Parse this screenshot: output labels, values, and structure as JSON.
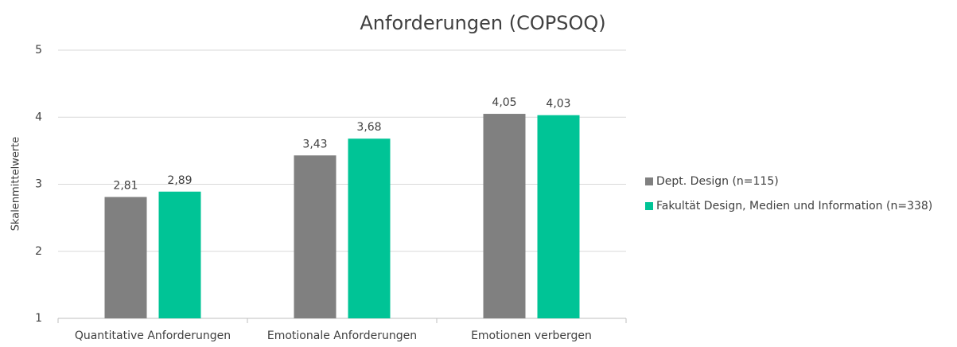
{
  "chart_data": {
    "type": "bar",
    "title": "Anforderungen (COPSOQ)",
    "y_label": "Skalenmittelwerte",
    "categories": [
      "Quantitative Anforderungen",
      "Emotionale Anforderungen",
      "Emotionen verbergen"
    ],
    "series": [
      {
        "name": "Dept. Design (n=115)",
        "color": "#808080",
        "values": [
          2.81,
          3.43,
          4.05
        ],
        "value_labels": [
          "2,81",
          "3,43",
          "4,05"
        ]
      },
      {
        "name": "Fakultät Design, Medien und Information (n=338)",
        "color": "#00c496",
        "values": [
          2.89,
          3.68,
          4.03
        ],
        "value_labels": [
          "2,89",
          "3,68",
          "4,03"
        ]
      }
    ],
    "ylim": [
      1,
      5
    ],
    "yticks": [
      1,
      2,
      3,
      4,
      5
    ],
    "grid": true,
    "legend": "right"
  }
}
